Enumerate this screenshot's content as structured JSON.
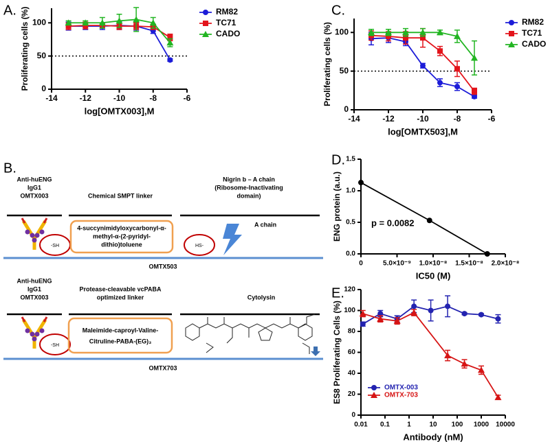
{
  "chart_data": [
    {
      "type": "line",
      "panel": "A.",
      "xlabel": "log[OMTX003],M",
      "ylabel": "Proliferating cells (%)",
      "x": [
        -13,
        -12,
        -11,
        -10,
        -9,
        -8,
        -7
      ],
      "series": [
        {
          "name": "RM82",
          "color": "#1c1cd8",
          "marker": "circle",
          "values": [
            95,
            95,
            95,
            96,
            95,
            88,
            44
          ],
          "errors": [
            6,
            5,
            5,
            6,
            6,
            4,
            2
          ]
        },
        {
          "name": "TC71",
          "color": "#e3141b",
          "marker": "square",
          "values": [
            95,
            96,
            96,
            95,
            95,
            94,
            78
          ],
          "errors": [
            5,
            5,
            4,
            5,
            5,
            4,
            5
          ]
        },
        {
          "name": "CADO",
          "color": "#22b522",
          "marker": "triangle",
          "values": [
            100,
            100,
            100,
            103,
            105,
            100,
            70
          ],
          "errors": [
            3,
            3,
            8,
            10,
            18,
            8,
            6
          ]
        }
      ],
      "xlim": [
        -14,
        -6
      ],
      "xticks": [
        -14,
        -12,
        -10,
        -8,
        -6
      ],
      "ylim": [
        0,
        122
      ],
      "yticks": [
        0,
        50,
        100
      ],
      "hline": 50,
      "legend": "right"
    },
    {
      "type": "line",
      "panel": "C.",
      "xlabel": "log[OMTX503],M",
      "ylabel": "Proliferating cells (%)",
      "x": [
        -13,
        -12,
        -11,
        -10,
        -9,
        -8,
        -7
      ],
      "series": [
        {
          "name": "RM82",
          "color": "#1c1cd8",
          "marker": "circle",
          "values": [
            92,
            93,
            88,
            57,
            35,
            30,
            17
          ],
          "errors": [
            8,
            6,
            5,
            3,
            5,
            5,
            2
          ]
        },
        {
          "name": "TC71",
          "color": "#e3141b",
          "marker": "square",
          "values": [
            96,
            95,
            93,
            93,
            76,
            53,
            24
          ],
          "errors": [
            6,
            6,
            8,
            12,
            6,
            10,
            4
          ]
        },
        {
          "name": "CADO",
          "color": "#22b522",
          "marker": "triangle",
          "values": [
            100,
            100,
            100,
            100,
            100,
            95,
            67
          ],
          "errors": [
            4,
            4,
            5,
            5,
            3,
            8,
            22
          ]
        }
      ],
      "xlim": [
        -14,
        -6
      ],
      "xticks": [
        -14,
        -12,
        -10,
        -8,
        -6
      ],
      "ylim": [
        0,
        118
      ],
      "yticks": [
        0,
        50,
        100
      ],
      "hline": 50,
      "legend": "right"
    },
    {
      "type": "line",
      "panel": "D.",
      "xlabel": "IC50 (M)",
      "ylabel": "ENG protein (a.u.)",
      "annotation": "p = 0.0082",
      "x": [
        0,
        9.5e-09,
        1.75e-08
      ],
      "series": [
        {
          "color": "#000000",
          "marker": "circle",
          "values": [
            1.13,
            0.53,
            0
          ]
        }
      ],
      "xlim": [
        0,
        2e-08
      ],
      "xticks": [
        0,
        {
          "value": 5e-09,
          "label": "5.0×10⁻⁹"
        },
        {
          "value": 1e-08,
          "label": "1.0×10⁻⁸"
        },
        {
          "value": 1.5e-08,
          "label": "1.5×10⁻⁸"
        },
        {
          "value": 2e-08,
          "label": "2.0×10⁻⁸"
        }
      ],
      "ylim": [
        0,
        1.5
      ],
      "yticks": [
        {
          "value": 0,
          "label": "0.0"
        },
        0.5,
        {
          "value": 1,
          "label": "1.0"
        },
        1.5
      ]
    },
    {
      "type": "line",
      "panel": "E.",
      "xlabel": "Antibody (nM)",
      "ylabel": "ES8 Proliferating Cells (%)",
      "xscale": "log",
      "series": [
        {
          "name": "OMTX-003",
          "color": "#2323b0",
          "marker": "circle",
          "x": [
            0.012,
            0.064,
            0.32,
            1.6,
            8,
            40,
            200,
            1000,
            5000
          ],
          "values": [
            87,
            97,
            92,
            104,
            100,
            104,
            97,
            96,
            92
          ],
          "errors": [
            2,
            3,
            3,
            6,
            10,
            10,
            1,
            1,
            4
          ]
        },
        {
          "name": "OMTX-703",
          "color": "#d61414",
          "marker": "triangle",
          "x": [
            0.012,
            0.064,
            0.32,
            1.6,
            40,
            200,
            1000,
            5000
          ],
          "values": [
            97,
            92,
            90,
            98,
            57,
            49,
            43,
            17
          ],
          "errors": [
            3,
            3,
            3,
            3,
            5,
            4,
            4,
            2
          ]
        }
      ],
      "xlim": [
        0.01,
        10000
      ],
      "xticks": [
        0.01,
        0.1,
        1,
        10,
        100,
        1000,
        10000
      ],
      "ylim": [
        0,
        120
      ],
      "yticks": [
        0,
        20,
        40,
        60,
        80,
        100,
        120
      ],
      "legend": "lower left"
    }
  ],
  "diagram": {
    "panel": "B.",
    "constructs": [
      {
        "antibody": [
          "Anti-huENG",
          "IgG1",
          "OMTX003"
        ],
        "linker_header": [
          "Chemical SMPT linker"
        ],
        "payload_header": [
          "Nigrin b – A chain",
          "(Ribosome-Inactivating",
          "domain)"
        ],
        "linker": [
          "4-succynimidyloxycarbonyl-α-",
          "methyl-α-(2-pyridyl-",
          "dithio)toluene"
        ],
        "thiol": "-SH",
        "payload_thiol": "HS-",
        "payload": "A chain",
        "name": "OMTX503"
      },
      {
        "antibody": [
          "Anti-huENG",
          "IgG1",
          "OMTX003"
        ],
        "linker_header": [
          "Protease-cleavable vcPABA",
          "optimized linker"
        ],
        "payload_header": [
          "Cytolysin"
        ],
        "linker": [
          "Maleimide-caproyl-Valine-",
          "Citruline-PABA-(EG)₃"
        ],
        "thiol": "-SH",
        "name": "OMTX703"
      }
    ]
  }
}
